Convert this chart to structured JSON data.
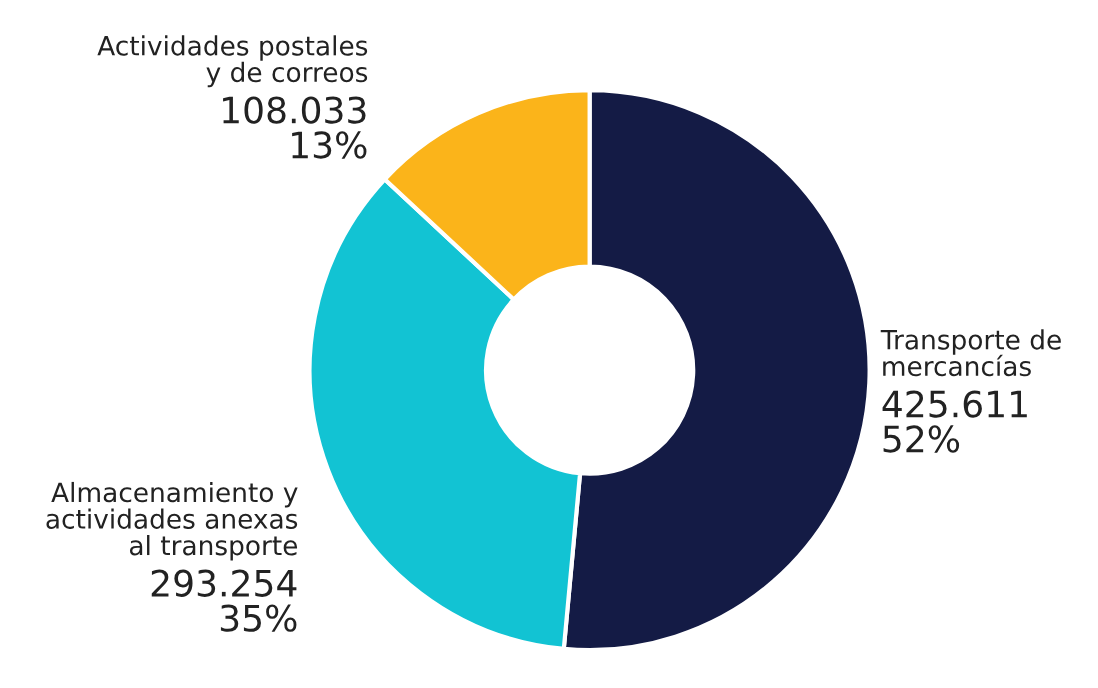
{
  "chart_data": {
    "type": "donut",
    "categories": [
      "Transporte de\nmercancías",
      "Almacenamiento y\nactividades anexas\nal transporte",
      "Actividades postales\ny de correos"
    ],
    "values": [
      425.611,
      293.254,
      108.033
    ],
    "value_labels": [
      "425.611\n52%",
      "293.254\n35%",
      "108.033\n13%"
    ],
    "colors": [
      "#141b45",
      "#12c3d3",
      "#fbb41a"
    ],
    "legend": false
  }
}
